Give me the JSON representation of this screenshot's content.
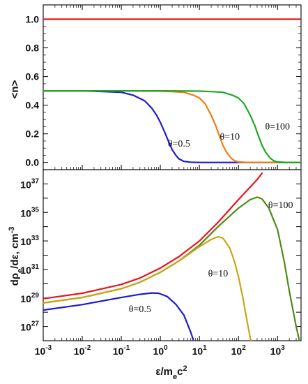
{
  "chart_data": [
    {
      "type": "line",
      "ylabel": "<n>",
      "xscale": "log",
      "xlim": [
        0.001,
        4000
      ],
      "ylim": [
        -0.05,
        1.1
      ],
      "yticks": [
        "0.0",
        "0.2",
        "0.4",
        "0.6",
        "0.8",
        "1.0"
      ],
      "series": [
        {
          "color": "#e8141b",
          "x": [
            0.001,
            4000
          ],
          "y": [
            1.0,
            1.0
          ]
        },
        {
          "name": "θ=0.5",
          "color": "#1c1ccc",
          "x": [
            0.001,
            0.01,
            0.1,
            0.2,
            0.4,
            0.6,
            0.8,
            1.0,
            1.3,
            1.6,
            2.0,
            2.5,
            3.0,
            4.0,
            6.0,
            10,
            100,
            4000
          ],
          "y": [
            0.5,
            0.5,
            0.49,
            0.47,
            0.43,
            0.38,
            0.33,
            0.28,
            0.21,
            0.15,
            0.09,
            0.05,
            0.025,
            0.008,
            0.002,
            0.0,
            0.0,
            0.0
          ]
        },
        {
          "name": "θ=10",
          "color": "#f07d12",
          "x": [
            0.001,
            0.1,
            1.0,
            2.0,
            4.0,
            7.0,
            10,
            14,
            20,
            26,
            32,
            40,
            50,
            65,
            80,
            100,
            150,
            4000
          ],
          "y": [
            0.5,
            0.5,
            0.498,
            0.495,
            0.49,
            0.47,
            0.45,
            0.41,
            0.33,
            0.26,
            0.19,
            0.12,
            0.07,
            0.03,
            0.012,
            0.004,
            0.001,
            0.0
          ]
        },
        {
          "name": "θ=100",
          "color": "#1fa823",
          "x": [
            0.001,
            1.0,
            10,
            20,
            40,
            70,
            100,
            140,
            200,
            260,
            320,
            400,
            500,
            650,
            800,
            1000,
            1500,
            4000
          ],
          "y": [
            0.5,
            0.5,
            0.498,
            0.495,
            0.49,
            0.47,
            0.45,
            0.41,
            0.33,
            0.26,
            0.19,
            0.12,
            0.07,
            0.03,
            0.012,
            0.004,
            0.001,
            0.0
          ]
        }
      ],
      "annotations": [
        {
          "text": "θ=100",
          "x": 1000,
          "y": 0.23
        },
        {
          "text": "θ=10",
          "x": 60,
          "y": 0.16
        },
        {
          "text": "θ=0.5",
          "x": 3.0,
          "y": 0.11
        }
      ]
    },
    {
      "type": "line",
      "xlabel": "ε/m_ec^2",
      "ylabel": "dρ_e/dε, cm^-3",
      "xscale": "log",
      "yscale": "log",
      "xlim": [
        0.001,
        4000
      ],
      "ylim_log10": [
        26,
        38
      ],
      "xticks": [
        {
          "base": "10",
          "exp": "-3"
        },
        {
          "base": "10",
          "exp": "-2"
        },
        {
          "base": "10",
          "exp": "-1"
        },
        {
          "base": "10",
          "exp": "0"
        },
        {
          "base": "10",
          "exp": "1"
        },
        {
          "base": "10",
          "exp": "2"
        },
        {
          "base": "10",
          "exp": "3"
        }
      ],
      "yticks": [
        {
          "base": "10",
          "exp": "27"
        },
        {
          "base": "10",
          "exp": "29"
        },
        {
          "base": "10",
          "exp": "31"
        },
        {
          "base": "10",
          "exp": "33"
        },
        {
          "base": "10",
          "exp": "35"
        },
        {
          "base": "10",
          "exp": "37"
        }
      ],
      "series": [
        {
          "color": "#e8141b",
          "x": [
            0.001,
            0.01,
            0.1,
            0.3,
            1.0,
            3.0,
            10,
            30,
            100,
            300,
            400
          ],
          "log10_y": [
            28.95,
            29.33,
            29.95,
            30.4,
            31.1,
            31.9,
            33.0,
            34.3,
            35.9,
            37.3,
            37.75
          ]
        },
        {
          "name": "θ=100",
          "color": "#4e8a18",
          "x": [
            0.001,
            0.01,
            0.1,
            0.3,
            1.0,
            3.0,
            10,
            30,
            100,
            200,
            300,
            400,
            600,
            1000,
            1500,
            2000,
            3000,
            4000
          ],
          "log10_y": [
            28.65,
            29.03,
            29.65,
            30.1,
            30.8,
            31.6,
            32.7,
            34.0,
            35.3,
            35.9,
            36.07,
            35.95,
            35.3,
            33.8,
            31.5,
            29.5,
            27.0,
            25.5
          ]
        },
        {
          "name": "θ=10",
          "color": "#c8a617",
          "x": [
            0.001,
            0.01,
            0.1,
            0.3,
            1.0,
            3.0,
            10,
            20,
            30,
            40,
            60,
            80,
            100,
            130,
            160,
            200,
            260
          ],
          "log10_y": [
            28.65,
            29.03,
            29.65,
            30.1,
            30.8,
            31.6,
            32.6,
            33.1,
            33.3,
            33.2,
            32.5,
            31.5,
            30.5,
            29.0,
            27.6,
            26.2,
            25.0
          ]
        },
        {
          "name": "θ=0.5",
          "color": "#1c1ccc",
          "x": [
            0.001,
            0.01,
            0.1,
            0.3,
            0.6,
            0.9,
            1.5,
            2.5,
            4.0,
            6.0,
            7.5,
            9.0
          ],
          "log10_y": [
            28.15,
            28.53,
            29.03,
            29.25,
            29.35,
            29.33,
            29.1,
            28.55,
            27.8,
            26.6,
            25.8,
            25.0
          ]
        }
      ],
      "annotations": [
        {
          "text": "θ=100",
          "x": 1200,
          "y_log10": 35.3
        },
        {
          "text": "θ=10",
          "x": 30,
          "y_log10": 30.5
        },
        {
          "text": "θ=0.5",
          "x": 0.3,
          "y_log10": 28.0
        }
      ]
    }
  ]
}
